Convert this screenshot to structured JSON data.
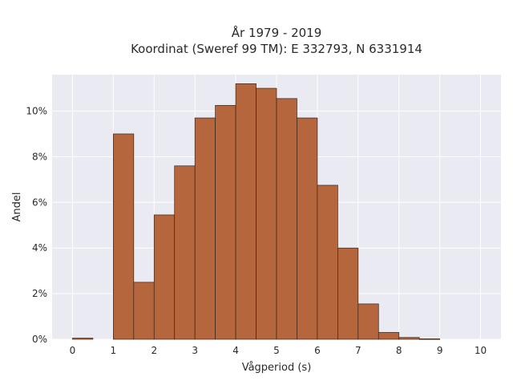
{
  "chart_data": {
    "type": "bar",
    "title_line1": "År 1979 - 2019",
    "title_line2": "Koordinat (Sweref 99 TM): E 332793, N 6331914",
    "xlabel": "Vågperiod (s)",
    "ylabel": "Andel",
    "xlim": [
      -0.5,
      10.5
    ],
    "ylim": [
      0,
      11.6
    ],
    "x_ticks": [
      0,
      1,
      2,
      3,
      4,
      5,
      6,
      7,
      8,
      9,
      10
    ],
    "y_ticks": [
      0,
      2,
      4,
      6,
      8,
      10
    ],
    "y_tick_suffix": "%",
    "bin_width": 0.5,
    "bins": [
      {
        "x0": 0.0,
        "value": 0.05
      },
      {
        "x0": 0.5,
        "value": 0
      },
      {
        "x0": 1.0,
        "value": 9.0
      },
      {
        "x0": 1.5,
        "value": 2.5
      },
      {
        "x0": 2.0,
        "value": 5.45
      },
      {
        "x0": 2.5,
        "value": 7.6
      },
      {
        "x0": 3.0,
        "value": 9.7
      },
      {
        "x0": 3.5,
        "value": 10.25
      },
      {
        "x0": 4.0,
        "value": 11.2
      },
      {
        "x0": 4.5,
        "value": 11.0
      },
      {
        "x0": 5.0,
        "value": 10.55
      },
      {
        "x0": 5.5,
        "value": 9.7
      },
      {
        "x0": 6.0,
        "value": 6.75
      },
      {
        "x0": 6.5,
        "value": 4.0
      },
      {
        "x0": 7.0,
        "value": 1.55
      },
      {
        "x0": 7.5,
        "value": 0.3
      },
      {
        "x0": 8.0,
        "value": 0.08
      },
      {
        "x0": 8.5,
        "value": 0.02
      }
    ],
    "grid": true,
    "bar_color": "#b5663c",
    "bar_edge_color": "#3a2418",
    "plot_bg": "#eaeaf2"
  }
}
